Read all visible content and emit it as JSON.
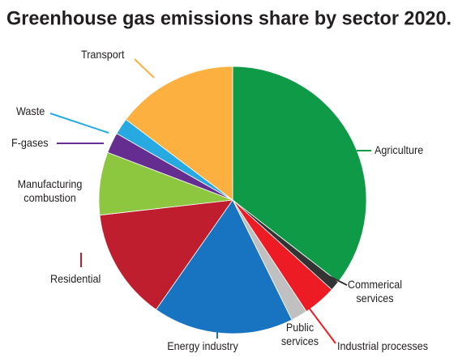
{
  "chart_data": {
    "type": "pie",
    "title": "Greenhouse gas emissions share by sector 2020.",
    "categories": [
      "Agriculture",
      "Commerical services",
      "Industrial processes",
      "Public services",
      "Energy industry",
      "Residential",
      "Manufacturing combustion",
      "F-gases",
      "Waste",
      "Transport"
    ],
    "values": [
      35.5,
      1.2,
      4,
      2,
      17,
      13.5,
      7.6,
      2.5,
      2,
      14.7
    ],
    "colors": [
      "#0f9a48",
      "#333333",
      "#ed1c24",
      "#c0c0c0",
      "#1874c1",
      "#be1e2d",
      "#8dc63f",
      "#662d91",
      "#27aae1",
      "#fbb040"
    ]
  }
}
